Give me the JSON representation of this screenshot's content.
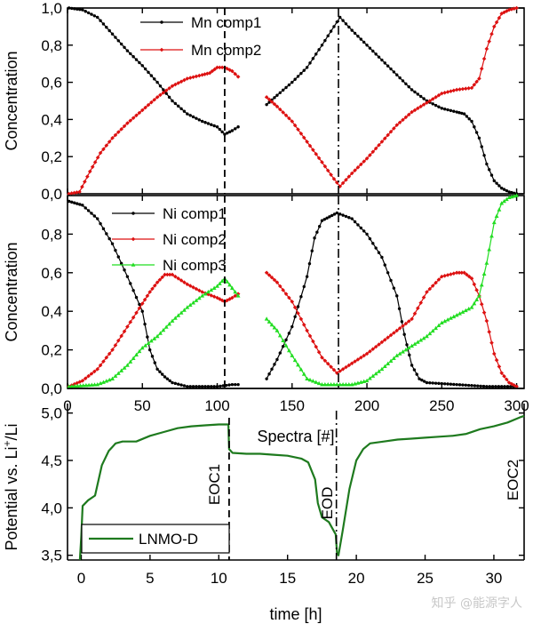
{
  "chart_data": [
    {
      "id": "mn",
      "type": "line",
      "ylabel": "Concentration",
      "xlim": [
        0,
        305
      ],
      "ylim": [
        0,
        1
      ],
      "yticks": [
        0,
        0.2,
        0.4,
        0.6,
        0.8,
        1.0
      ],
      "ytick_labels": [
        "0,0",
        "0,2",
        "0,4",
        "0,6",
        "0,8",
        "1,0"
      ],
      "legend": [
        "Mn comp1",
        "Mn comp2"
      ],
      "series": [
        {
          "name": "Mn comp1",
          "color": "#000000",
          "segments": [
            [
              [
                1,
                1.0
              ],
              [
                10,
                0.99
              ],
              [
                20,
                0.95
              ],
              [
                30,
                0.86
              ],
              [
                40,
                0.77
              ],
              [
                50,
                0.69
              ],
              [
                60,
                0.6
              ],
              [
                70,
                0.5
              ],
              [
                80,
                0.43
              ],
              [
                90,
                0.39
              ],
              [
                100,
                0.36
              ],
              [
                105,
                0.32
              ],
              [
                110,
                0.34
              ],
              [
                114,
                0.36
              ]
            ],
            [
              [
                133,
                0.48
              ],
              [
                140,
                0.53
              ],
              [
                150,
                0.6
              ],
              [
                160,
                0.68
              ],
              [
                170,
                0.8
              ],
              [
                178,
                0.9
              ],
              [
                182,
                0.95
              ],
              [
                190,
                0.88
              ],
              [
                200,
                0.8
              ],
              [
                210,
                0.72
              ],
              [
                220,
                0.64
              ],
              [
                230,
                0.56
              ],
              [
                240,
                0.5
              ],
              [
                250,
                0.46
              ],
              [
                260,
                0.44
              ],
              [
                265,
                0.43
              ],
              [
                270,
                0.39
              ],
              [
                275,
                0.3
              ],
              [
                280,
                0.16
              ],
              [
                285,
                0.07
              ],
              [
                290,
                0.03
              ],
              [
                295,
                0.01
              ],
              [
                300,
                0.0
              ]
            ]
          ]
        },
        {
          "name": "Mn comp2",
          "color": "#dd1111",
          "segments": [
            [
              [
                1,
                0.0
              ],
              [
                8,
                0.01
              ],
              [
                15,
                0.12
              ],
              [
                22,
                0.22
              ],
              [
                30,
                0.3
              ],
              [
                40,
                0.38
              ],
              [
                50,
                0.45
              ],
              [
                60,
                0.52
              ],
              [
                70,
                0.58
              ],
              [
                80,
                0.62
              ],
              [
                90,
                0.64
              ],
              [
                95,
                0.65
              ],
              [
                100,
                0.68
              ],
              [
                105,
                0.68
              ],
              [
                110,
                0.66
              ],
              [
                114,
                0.63
              ]
            ],
            [
              [
                133,
                0.52
              ],
              [
                140,
                0.47
              ],
              [
                150,
                0.39
              ],
              [
                160,
                0.28
              ],
              [
                170,
                0.17
              ],
              [
                178,
                0.08
              ],
              [
                182,
                0.04
              ],
              [
                190,
                0.11
              ],
              [
                200,
                0.19
              ],
              [
                210,
                0.28
              ],
              [
                220,
                0.37
              ],
              [
                230,
                0.44
              ],
              [
                240,
                0.49
              ],
              [
                250,
                0.54
              ],
              [
                260,
                0.56
              ],
              [
                270,
                0.57
              ],
              [
                275,
                0.62
              ],
              [
                280,
                0.78
              ],
              [
                285,
                0.9
              ],
              [
                290,
                0.97
              ],
              [
                295,
                0.99
              ],
              [
                300,
                1.0
              ]
            ]
          ]
        }
      ]
    },
    {
      "id": "ni",
      "type": "line",
      "ylabel": "Concentration",
      "xlabel": "Spectra [#]",
      "xlim": [
        0,
        305
      ],
      "ylim": [
        0,
        1
      ],
      "xticks": [
        0,
        50,
        100,
        150,
        200,
        250,
        300
      ],
      "xtick_labels": [
        "0",
        "50",
        "100",
        "150",
        "200",
        "250",
        "300"
      ],
      "yticks": [
        0,
        0.2,
        0.4,
        0.6,
        0.8
      ],
      "ytick_labels": [
        "0,0",
        "0,2",
        "0,4",
        "0,6",
        "0,8"
      ],
      "legend": [
        "Ni comp1",
        "Ni comp2",
        "Ni comp3"
      ],
      "series": [
        {
          "name": "Ni comp1",
          "color": "#000000",
          "segments": [
            [
              [
                1,
                0.97
              ],
              [
                10,
                0.95
              ],
              [
                20,
                0.88
              ],
              [
                30,
                0.75
              ],
              [
                40,
                0.58
              ],
              [
                50,
                0.4
              ],
              [
                55,
                0.2
              ],
              [
                60,
                0.1
              ],
              [
                65,
                0.06
              ],
              [
                70,
                0.03
              ],
              [
                80,
                0.01
              ],
              [
                90,
                0.01
              ],
              [
                100,
                0.01
              ],
              [
                110,
                0.02
              ],
              [
                114,
                0.02
              ]
            ],
            [
              [
                133,
                0.05
              ],
              [
                140,
                0.15
              ],
              [
                150,
                0.32
              ],
              [
                160,
                0.58
              ],
              [
                165,
                0.78
              ],
              [
                170,
                0.87
              ],
              [
                175,
                0.89
              ],
              [
                180,
                0.91
              ],
              [
                190,
                0.88
              ],
              [
                200,
                0.8
              ],
              [
                210,
                0.68
              ],
              [
                220,
                0.48
              ],
              [
                225,
                0.28
              ],
              [
                230,
                0.12
              ],
              [
                235,
                0.05
              ],
              [
                240,
                0.03
              ],
              [
                260,
                0.02
              ],
              [
                280,
                0.01
              ],
              [
                300,
                0.01
              ]
            ]
          ]
        },
        {
          "name": "Ni comp2",
          "color": "#dd1111",
          "segments": [
            [
              [
                1,
                0.01
              ],
              [
                10,
                0.04
              ],
              [
                20,
                0.1
              ],
              [
                30,
                0.2
              ],
              [
                40,
                0.32
              ],
              [
                50,
                0.44
              ],
              [
                55,
                0.5
              ],
              [
                60,
                0.55
              ],
              [
                65,
                0.59
              ],
              [
                70,
                0.59
              ],
              [
                80,
                0.54
              ],
              [
                90,
                0.5
              ],
              [
                100,
                0.47
              ],
              [
                105,
                0.45
              ],
              [
                110,
                0.47
              ],
              [
                114,
                0.49
              ]
            ],
            [
              [
                133,
                0.6
              ],
              [
                140,
                0.55
              ],
              [
                150,
                0.45
              ],
              [
                160,
                0.3
              ],
              [
                170,
                0.16
              ],
              [
                180,
                0.08
              ],
              [
                190,
                0.13
              ],
              [
                200,
                0.18
              ],
              [
                210,
                0.24
              ],
              [
                220,
                0.3
              ],
              [
                230,
                0.36
              ],
              [
                240,
                0.5
              ],
              [
                250,
                0.58
              ],
              [
                260,
                0.6
              ],
              [
                265,
                0.6
              ],
              [
                270,
                0.57
              ],
              [
                275,
                0.48
              ],
              [
                280,
                0.35
              ],
              [
                285,
                0.18
              ],
              [
                290,
                0.08
              ],
              [
                295,
                0.03
              ],
              [
                300,
                0.01
              ]
            ]
          ]
        },
        {
          "name": "Ni comp3",
          "color": "#22dd22",
          "segments": [
            [
              [
                1,
                0.01
              ],
              [
                20,
                0.02
              ],
              [
                30,
                0.05
              ],
              [
                40,
                0.12
              ],
              [
                50,
                0.21
              ],
              [
                60,
                0.27
              ],
              [
                70,
                0.35
              ],
              [
                80,
                0.42
              ],
              [
                90,
                0.48
              ],
              [
                100,
                0.53
              ],
              [
                105,
                0.57
              ],
              [
                110,
                0.52
              ],
              [
                114,
                0.48
              ]
            ],
            [
              [
                133,
                0.36
              ],
              [
                140,
                0.3
              ],
              [
                150,
                0.17
              ],
              [
                160,
                0.05
              ],
              [
                170,
                0.02
              ],
              [
                180,
                0.02
              ],
              [
                190,
                0.02
              ],
              [
                200,
                0.04
              ],
              [
                210,
                0.1
              ],
              [
                220,
                0.17
              ],
              [
                230,
                0.22
              ],
              [
                240,
                0.27
              ],
              [
                250,
                0.34
              ],
              [
                260,
                0.38
              ],
              [
                270,
                0.42
              ],
              [
                275,
                0.48
              ],
              [
                280,
                0.65
              ],
              [
                285,
                0.86
              ],
              [
                290,
                0.96
              ],
              [
                295,
                0.99
              ],
              [
                300,
                1.0
              ]
            ]
          ]
        }
      ]
    },
    {
      "id": "potential",
      "type": "line",
      "ylabel": "Potential vs. Li⁺/Li",
      "ylabel_main": "Potential vs. Li",
      "ylabel_sup": "+",
      "ylabel_tail": "/Li",
      "xlabel": "time [h]",
      "xlim": [
        -1,
        32.2
      ],
      "ylim": [
        3.45,
        5.1
      ],
      "xticks": [
        0,
        5,
        10,
        15,
        20,
        25,
        30
      ],
      "xtick_labels": [
        "0",
        "5",
        "10",
        "15",
        "20",
        "25",
        "30"
      ],
      "yticks": [
        3.5,
        4.0,
        4.5,
        5.0
      ],
      "ytick_labels": [
        "3,5",
        "4,0",
        "4,5",
        "5,0"
      ],
      "legend": [
        "LNMO-D"
      ],
      "annotations": [
        "EOC1",
        "EOD",
        "EOC2"
      ],
      "series": [
        {
          "name": "LNMO-D",
          "color": "#1e7a1e",
          "points": [
            [
              -0.1,
              3.45
            ],
            [
              0.0,
              3.7
            ],
            [
              0.1,
              4.02
            ],
            [
              0.5,
              4.08
            ],
            [
              1.0,
              4.13
            ],
            [
              1.5,
              4.45
            ],
            [
              2.0,
              4.6
            ],
            [
              2.5,
              4.68
            ],
            [
              3,
              4.7
            ],
            [
              4,
              4.7
            ],
            [
              5,
              4.76
            ],
            [
              6,
              4.8
            ],
            [
              7,
              4.84
            ],
            [
              8,
              4.86
            ],
            [
              9,
              4.87
            ],
            [
              10,
              4.88
            ],
            [
              10.7,
              4.88
            ],
            [
              10.75,
              4.62
            ],
            [
              11,
              4.58
            ],
            [
              12,
              4.57
            ],
            [
              13,
              4.57
            ],
            [
              14,
              4.56
            ],
            [
              15,
              4.55
            ],
            [
              16,
              4.52
            ],
            [
              16.5,
              4.48
            ],
            [
              17,
              4.3
            ],
            [
              17.2,
              4.05
            ],
            [
              17.5,
              3.9
            ],
            [
              18,
              3.85
            ],
            [
              18.5,
              3.72
            ],
            [
              18.6,
              3.52
            ],
            [
              18.7,
              3.5
            ],
            [
              19,
              3.75
            ],
            [
              19.5,
              4.2
            ],
            [
              20,
              4.5
            ],
            [
              20.5,
              4.62
            ],
            [
              21,
              4.68
            ],
            [
              22,
              4.7
            ],
            [
              23,
              4.72
            ],
            [
              24,
              4.73
            ],
            [
              25,
              4.74
            ],
            [
              26,
              4.75
            ],
            [
              27,
              4.76
            ],
            [
              28,
              4.78
            ],
            [
              29,
              4.83
            ],
            [
              30,
              4.86
            ],
            [
              31,
              4.9
            ],
            [
              32,
              4.96
            ],
            [
              32.2,
              4.97
            ]
          ]
        }
      ]
    }
  ],
  "watermark": "知乎 @能源字人"
}
